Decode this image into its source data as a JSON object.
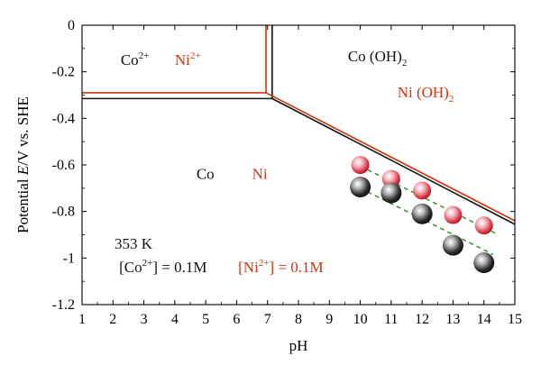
{
  "colors": {
    "co": "#111111",
    "ni": "#d0330f",
    "fit": "#2e8b2e",
    "axis": "#000000"
  },
  "chart_data": {
    "type": "scatter",
    "xlabel": "pH",
    "ylabel_parts": [
      "Potential ",
      "E",
      "/V vs. SHE"
    ],
    "xlim": [
      1,
      15
    ],
    "ylim": [
      -1.2,
      0
    ],
    "xticks": [
      1,
      2,
      3,
      4,
      5,
      6,
      7,
      8,
      9,
      10,
      11,
      12,
      13,
      14,
      15
    ],
    "yticks": [
      0,
      -0.2,
      -0.4,
      -0.6,
      -0.8,
      -1,
      -1.2
    ],
    "ytick_labels": [
      "0",
      "-0.2",
      "-0.4",
      "-0.6",
      "-0.8",
      "-1",
      "-1.2"
    ],
    "boundaries": {
      "co": {
        "vertical": [
          [
            7.15,
            0
          ],
          [
            7.15,
            -0.315
          ]
        ],
        "horizontal": [
          [
            1,
            -0.315
          ],
          [
            7.15,
            -0.315
          ]
        ],
        "sloped": [
          [
            7.15,
            -0.315
          ],
          [
            15,
            -0.855
          ]
        ]
      },
      "ni": {
        "vertical": [
          [
            6.95,
            0
          ],
          [
            6.95,
            -0.29
          ]
        ],
        "horizontal": [
          [
            1,
            -0.29
          ],
          [
            6.95,
            -0.29
          ]
        ],
        "sloped": [
          [
            6.95,
            -0.29
          ],
          [
            15,
            -0.84
          ]
        ]
      }
    },
    "series": [
      {
        "name": "Ni",
        "points": [
          {
            "x": 10,
            "y": -0.6
          },
          {
            "x": 11,
            "y": -0.66
          },
          {
            "x": 12,
            "y": -0.71
          },
          {
            "x": 13,
            "y": -0.815
          },
          {
            "x": 14,
            "y": -0.86
          }
        ],
        "fit": [
          [
            10,
            -0.605
          ],
          [
            14.4,
            -0.895
          ]
        ]
      },
      {
        "name": "Co",
        "points": [
          {
            "x": 10,
            "y": -0.695
          },
          {
            "x": 11,
            "y": -0.72
          },
          {
            "x": 12,
            "y": -0.81
          },
          {
            "x": 13,
            "y": -0.945
          },
          {
            "x": 14,
            "y": -1.02
          }
        ],
        "fit": [
          [
            10,
            -0.7
          ],
          [
            14.3,
            -0.985
          ]
        ]
      }
    ],
    "region_labels": [
      {
        "name": "co2plus",
        "base": "Co",
        "sup": "2+",
        "x": 2.25,
        "y": -0.17,
        "color": "co"
      },
      {
        "name": "ni2plus",
        "base": "Ni",
        "sup": "2+",
        "x": 4.0,
        "y": -0.17,
        "color": "ni"
      },
      {
        "name": "co-oh2",
        "base": "Co (OH)",
        "sub": "2",
        "x": 9.6,
        "y": -0.155,
        "color": "co"
      },
      {
        "name": "ni-oh2",
        "base": "Ni (OH)",
        "sub": "2",
        "x": 11.2,
        "y": -0.31,
        "color": "ni"
      },
      {
        "name": "co-metal",
        "base": "Co",
        "x": 4.7,
        "y": -0.66,
        "color": "co"
      },
      {
        "name": "ni-metal",
        "base": "Ni",
        "x": 6.5,
        "y": -0.66,
        "color": "ni"
      }
    ],
    "annotations": {
      "temperature": "353 K",
      "co_conc": {
        "open": "[Co",
        "sup": "2+",
        "close": "] = 0.1M"
      },
      "ni_conc": {
        "open": "[Ni",
        "sup": "2+",
        "close": "] = 0.1M"
      }
    }
  }
}
